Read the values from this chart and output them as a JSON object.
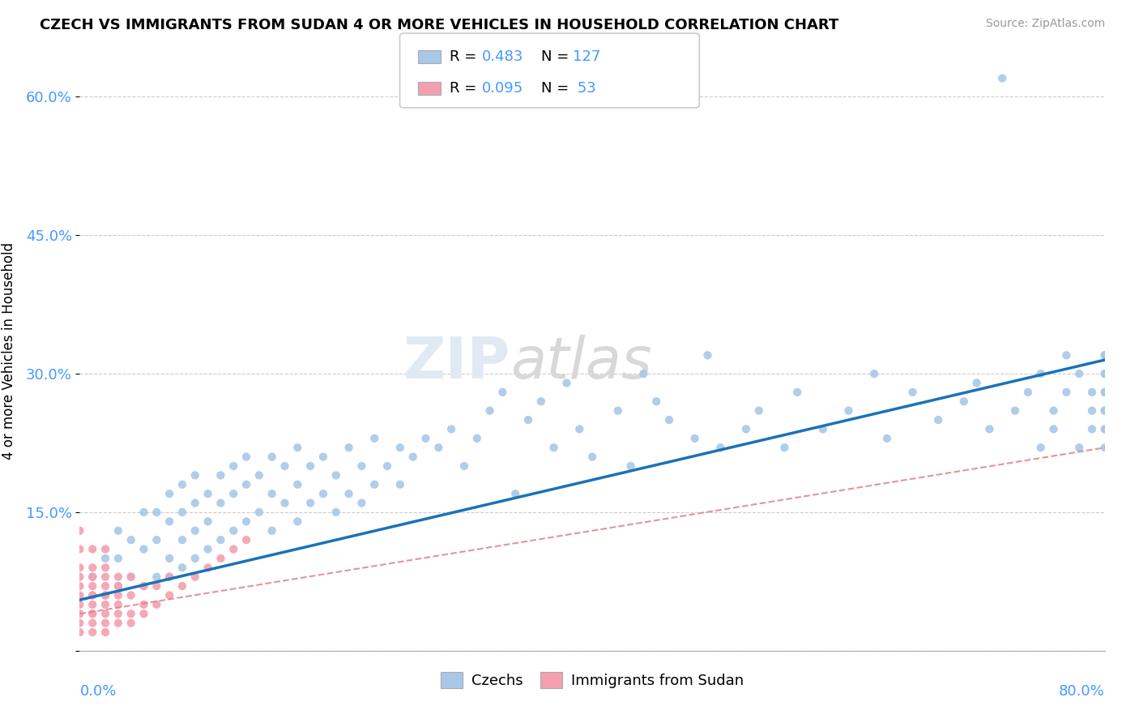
{
  "title": "CZECH VS IMMIGRANTS FROM SUDAN 4 OR MORE VEHICLES IN HOUSEHOLD CORRELATION CHART",
  "source": "Source: ZipAtlas.com",
  "ylabel": "4 or more Vehicles in Household",
  "xlim": [
    0.0,
    0.8
  ],
  "ylim": [
    0.0,
    0.65
  ],
  "ytick_vals": [
    0.0,
    0.15,
    0.3,
    0.45,
    0.6
  ],
  "ytick_labels": [
    "",
    "15.0%",
    "30.0%",
    "45.0%",
    "60.0%"
  ],
  "color_czech": "#a8c8e8",
  "color_sudan": "#f4a0b0",
  "color_line_czech": "#1a72b8",
  "color_line_sudan": "#e08090",
  "color_tick": "#4499ff",
  "czechs_x": [
    0.01,
    0.02,
    0.02,
    0.03,
    0.03,
    0.03,
    0.04,
    0.04,
    0.05,
    0.05,
    0.05,
    0.06,
    0.06,
    0.06,
    0.07,
    0.07,
    0.07,
    0.07,
    0.08,
    0.08,
    0.08,
    0.08,
    0.09,
    0.09,
    0.09,
    0.09,
    0.1,
    0.1,
    0.1,
    0.11,
    0.11,
    0.11,
    0.12,
    0.12,
    0.12,
    0.13,
    0.13,
    0.13,
    0.14,
    0.14,
    0.15,
    0.15,
    0.15,
    0.16,
    0.16,
    0.17,
    0.17,
    0.17,
    0.18,
    0.18,
    0.19,
    0.19,
    0.2,
    0.2,
    0.21,
    0.21,
    0.22,
    0.22,
    0.23,
    0.23,
    0.24,
    0.25,
    0.25,
    0.26,
    0.27,
    0.28,
    0.29,
    0.3,
    0.31,
    0.32,
    0.33,
    0.34,
    0.35,
    0.36,
    0.37,
    0.38,
    0.39,
    0.4,
    0.42,
    0.43,
    0.44,
    0.45,
    0.46,
    0.48,
    0.49,
    0.5,
    0.52,
    0.53,
    0.55,
    0.56,
    0.58,
    0.6,
    0.62,
    0.63,
    0.65,
    0.67,
    0.69,
    0.7,
    0.71,
    0.72,
    0.73,
    0.74,
    0.75,
    0.75,
    0.76,
    0.76,
    0.77,
    0.77,
    0.78,
    0.78,
    0.79,
    0.79,
    0.79,
    0.8,
    0.8,
    0.8,
    0.8,
    0.8,
    0.8,
    0.8,
    0.8,
    0.8,
    0.8,
    0.8,
    0.8,
    0.8,
    0.8
  ],
  "czechs_y": [
    0.08,
    0.06,
    0.1,
    0.07,
    0.1,
    0.13,
    0.08,
    0.12,
    0.07,
    0.11,
    0.15,
    0.08,
    0.12,
    0.15,
    0.08,
    0.1,
    0.14,
    0.17,
    0.09,
    0.12,
    0.15,
    0.18,
    0.1,
    0.13,
    0.16,
    0.19,
    0.11,
    0.14,
    0.17,
    0.12,
    0.16,
    0.19,
    0.13,
    0.17,
    0.2,
    0.14,
    0.18,
    0.21,
    0.15,
    0.19,
    0.13,
    0.17,
    0.21,
    0.16,
    0.2,
    0.14,
    0.18,
    0.22,
    0.16,
    0.2,
    0.17,
    0.21,
    0.15,
    0.19,
    0.17,
    0.22,
    0.16,
    0.2,
    0.18,
    0.23,
    0.2,
    0.18,
    0.22,
    0.21,
    0.23,
    0.22,
    0.24,
    0.2,
    0.23,
    0.26,
    0.28,
    0.17,
    0.25,
    0.27,
    0.22,
    0.29,
    0.24,
    0.21,
    0.26,
    0.2,
    0.3,
    0.27,
    0.25,
    0.23,
    0.32,
    0.22,
    0.24,
    0.26,
    0.22,
    0.28,
    0.24,
    0.26,
    0.3,
    0.23,
    0.28,
    0.25,
    0.27,
    0.29,
    0.24,
    0.62,
    0.26,
    0.28,
    0.22,
    0.3,
    0.26,
    0.24,
    0.28,
    0.32,
    0.22,
    0.3,
    0.26,
    0.28,
    0.24,
    0.32,
    0.26,
    0.28,
    0.24,
    0.3,
    0.22,
    0.28,
    0.32,
    0.26,
    0.24,
    0.3,
    0.28,
    0.32,
    0.26
  ],
  "sudan_x": [
    0.0,
    0.0,
    0.0,
    0.0,
    0.0,
    0.0,
    0.0,
    0.0,
    0.0,
    0.0,
    0.01,
    0.01,
    0.01,
    0.01,
    0.01,
    0.01,
    0.01,
    0.01,
    0.01,
    0.01,
    0.01,
    0.02,
    0.02,
    0.02,
    0.02,
    0.02,
    0.02,
    0.02,
    0.02,
    0.02,
    0.03,
    0.03,
    0.03,
    0.03,
    0.03,
    0.03,
    0.04,
    0.04,
    0.04,
    0.04,
    0.05,
    0.05,
    0.05,
    0.06,
    0.06,
    0.07,
    0.07,
    0.08,
    0.09,
    0.1,
    0.11,
    0.12,
    0.13
  ],
  "sudan_y": [
    0.04,
    0.06,
    0.08,
    0.03,
    0.05,
    0.07,
    0.09,
    0.11,
    0.13,
    0.02,
    0.04,
    0.06,
    0.08,
    0.03,
    0.05,
    0.07,
    0.09,
    0.11,
    0.02,
    0.04,
    0.06,
    0.03,
    0.05,
    0.07,
    0.09,
    0.11,
    0.04,
    0.06,
    0.08,
    0.02,
    0.04,
    0.06,
    0.08,
    0.03,
    0.05,
    0.07,
    0.04,
    0.06,
    0.08,
    0.03,
    0.05,
    0.07,
    0.04,
    0.05,
    0.07,
    0.06,
    0.08,
    0.07,
    0.08,
    0.09,
    0.1,
    0.11,
    0.12
  ],
  "line_czech_x0": 0.0,
  "line_czech_x1": 0.8,
  "line_czech_y0": 0.055,
  "line_czech_y1": 0.315,
  "line_sudan_x0": 0.0,
  "line_sudan_x1": 0.8,
  "line_sudan_y0": 0.04,
  "line_sudan_y1": 0.22
}
